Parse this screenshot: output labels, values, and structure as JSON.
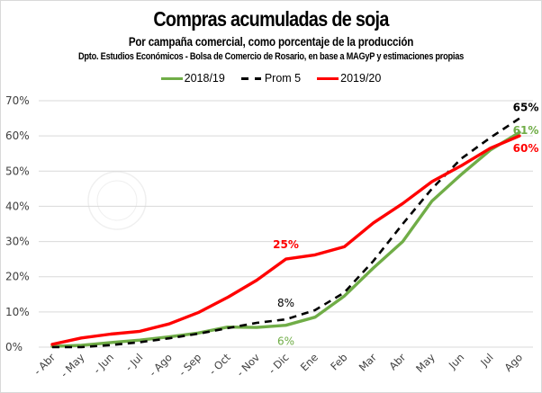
{
  "chart_data": {
    "type": "line",
    "title": "Compras acumuladas de soja",
    "subtitle": "Por campaña comercial, como porcentaje de la producción",
    "source": "Dpto. Estudios Económicos - Bolsa de Comercio de Rosario, en base a MAGyP y estimaciones propias",
    "xlabel": "",
    "ylabel": "",
    "ylim": [
      0,
      70
    ],
    "yticks": [
      0,
      10,
      20,
      30,
      40,
      50,
      60,
      70
    ],
    "ytick_labels": [
      "0%",
      "10%",
      "20%",
      "30%",
      "40%",
      "50%",
      "60%",
      "70%"
    ],
    "grid": true,
    "legend_position": "top-center",
    "categories": [
      "- Abr",
      "- May",
      "- Jun",
      "- Jul",
      "- Ago",
      "- Sep",
      "- Oct",
      "- Nov",
      "- Dic",
      "Ene",
      "Feb",
      "Mar",
      "Abr",
      "May",
      "Jun",
      "Jul",
      "Ago"
    ],
    "series": [
      {
        "name": "2018/19",
        "color": "#70ad47",
        "style": "solid",
        "values": [
          0.2,
          0.5,
          1.3,
          2.0,
          2.9,
          4.0,
          5.7,
          5.6,
          6.2,
          8.5,
          14.5,
          22.5,
          30,
          41.5,
          49,
          56,
          61
        ]
      },
      {
        "name": "Prom 5",
        "color": "#000000",
        "style": "dashed",
        "values": [
          0,
          0,
          0.6,
          1.4,
          2.5,
          3.8,
          5.4,
          6.9,
          7.9,
          10.5,
          15.5,
          24.5,
          35,
          45,
          53.5,
          59.5,
          65
        ]
      },
      {
        "name": "2019/20",
        "color": "#ff0000",
        "style": "solid",
        "values": [
          0.8,
          2.6,
          3.7,
          4.5,
          6.6,
          9.8,
          14.1,
          19,
          25,
          26.2,
          28.5,
          35.3,
          40.8,
          47,
          51.5,
          56.5,
          60
        ]
      }
    ],
    "annotations": [
      {
        "text": "25%",
        "series": "2019/20",
        "category": "- Dic",
        "color": "#ff0000",
        "bold": true
      },
      {
        "text": "8%",
        "series": "Prom 5",
        "category": "- Dic",
        "color": "#000000",
        "bold": false
      },
      {
        "text": "6%",
        "series": "2018/19",
        "category": "- Dic",
        "color": "#70ad47",
        "bold": false
      },
      {
        "text": "65%",
        "series": "Prom 5",
        "category": "Ago",
        "color": "#000000",
        "bold": true
      },
      {
        "text": "61%",
        "series": "2018/19",
        "category": "Ago",
        "color": "#70ad47",
        "bold": true
      },
      {
        "text": "60%",
        "series": "2019/20",
        "category": "Ago",
        "color": "#ff0000",
        "bold": true
      }
    ]
  },
  "legend": [
    {
      "label": "2018/19",
      "color": "#70ad47",
      "style": "solid"
    },
    {
      "label": "Prom 5",
      "color": "#000000",
      "style": "dashed"
    },
    {
      "label": "2019/20",
      "color": "#ff0000",
      "style": "solid"
    }
  ]
}
